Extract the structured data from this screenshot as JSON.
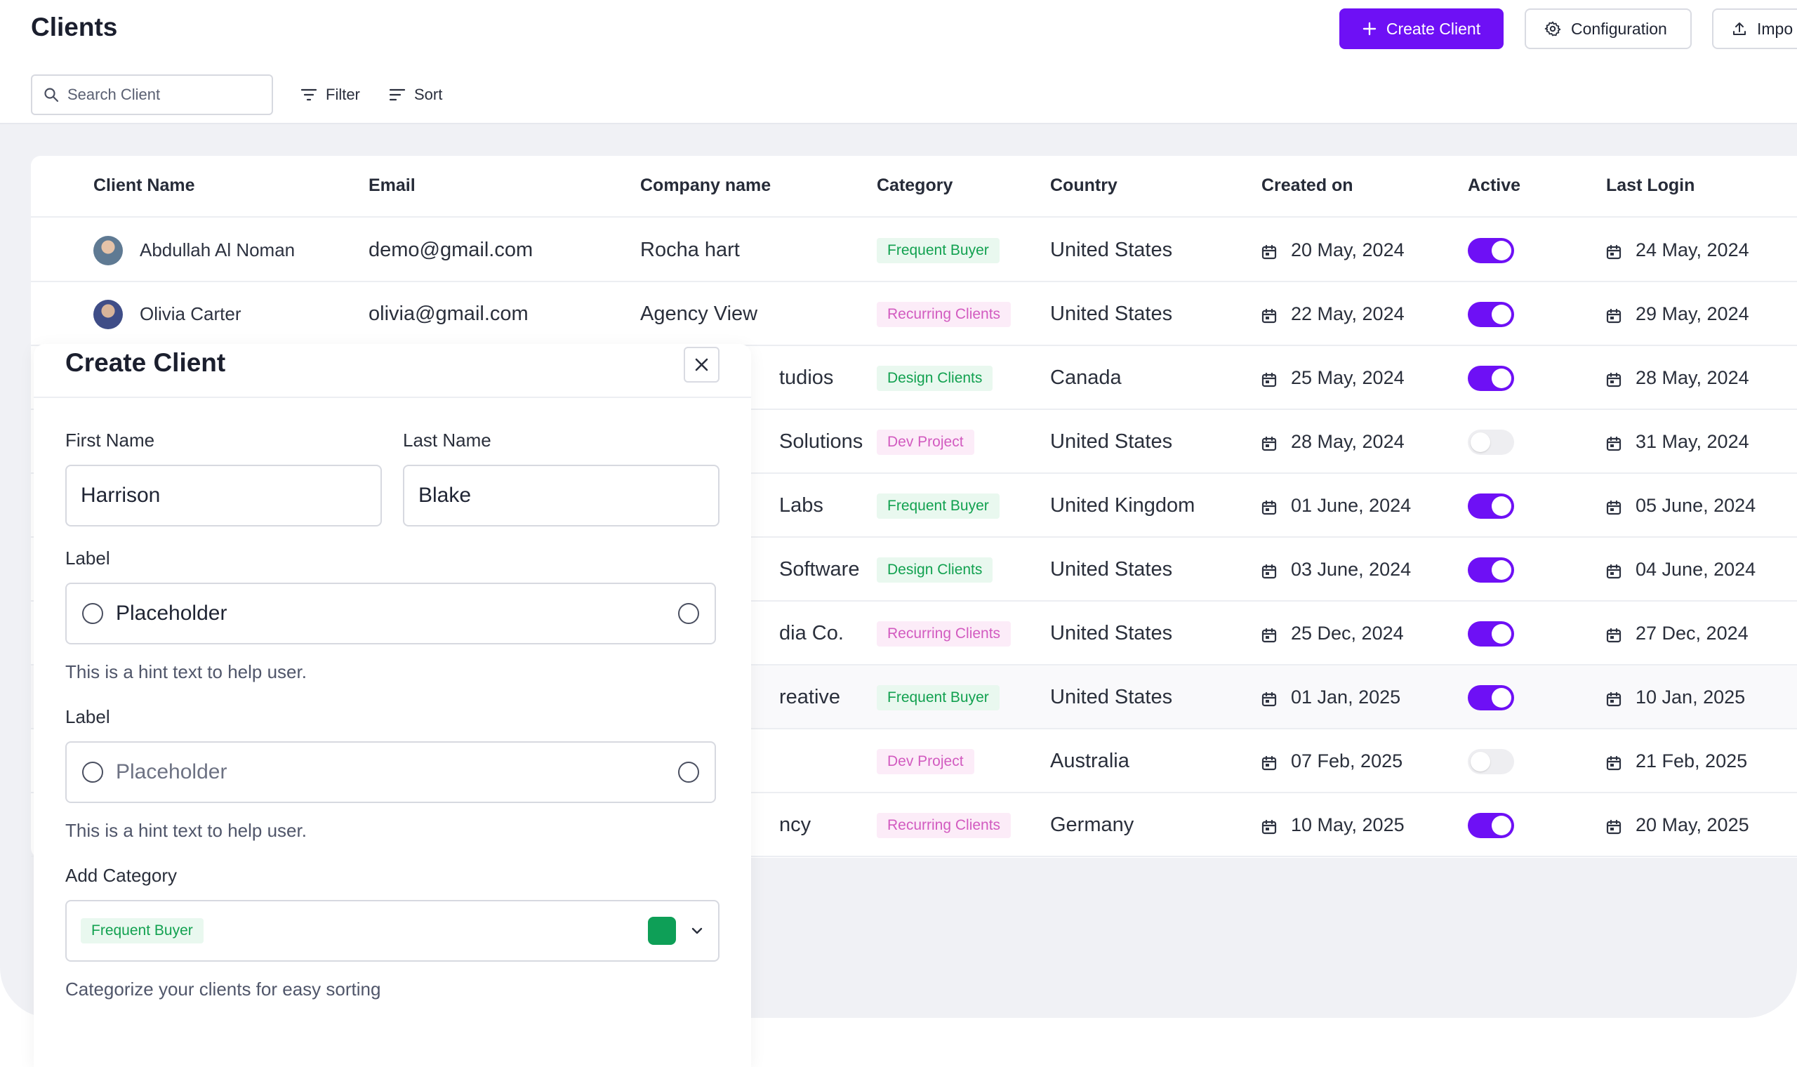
{
  "header": {
    "title": "Clients",
    "create_label": "Create Client",
    "config_label": "Configuration",
    "import_label": "Impo"
  },
  "toolbar": {
    "search_placeholder": "Search Client",
    "filter_label": "Filter",
    "sort_label": "Sort"
  },
  "table": {
    "columns": [
      "Client Name",
      "Email",
      "Company name",
      "Category",
      "Country",
      "Created on",
      "Active",
      "Last Login"
    ],
    "rows": [
      {
        "name": "Abdullah Al Noman",
        "email": "demo@gmail.com",
        "company": "Rocha hart",
        "category": "Frequent Buyer",
        "country": "United States",
        "created": "20 May, 2024",
        "active": true,
        "last_login": "24 May, 2024"
      },
      {
        "name": "Olivia Carter",
        "email": "olivia@gmail.com",
        "company": "Agency View",
        "category": "Recurring Clients",
        "country": "United States",
        "created": "22 May, 2024",
        "active": true,
        "last_login": "29 May, 2024"
      },
      {
        "name": "",
        "email": "",
        "company": "tudios",
        "category": "Design Clients",
        "country": "Canada",
        "created": "25 May, 2024",
        "active": true,
        "last_login": "28 May, 2024"
      },
      {
        "name": "",
        "email": "",
        "company": "Solutions",
        "category": "Dev  Project",
        "country": "United States",
        "created": "28 May, 2024",
        "active": false,
        "last_login": "31 May, 2024"
      },
      {
        "name": "",
        "email": "",
        "company": "Labs",
        "category": "Frequent Buyer",
        "country": "United Kingdom",
        "created": "01 June, 2024",
        "active": true,
        "last_login": "05 June, 2024"
      },
      {
        "name": "",
        "email": "",
        "company": "Software",
        "category": "Design Clients",
        "country": "United States",
        "created": "03 June, 2024",
        "active": true,
        "last_login": "04 June, 2024"
      },
      {
        "name": "",
        "email": "",
        "company": "dia Co.",
        "category": "Recurring Clients",
        "country": "United States",
        "created": "25 Dec, 2024",
        "active": true,
        "last_login": "27 Dec, 2024"
      },
      {
        "name": "",
        "email": "",
        "company": "reative",
        "category": "Frequent Buyer",
        "country": "United States",
        "created": "01 Jan, 2025",
        "active": true,
        "last_login": "10 Jan, 2025"
      },
      {
        "name": "",
        "email": "",
        "company": "",
        "category": "Dev  Project",
        "country": "Australia",
        "created": "07 Feb, 2025",
        "active": false,
        "last_login": "21 Feb, 2025"
      },
      {
        "name": "",
        "email": "",
        "company": "ncy",
        "category": "Recurring Clients",
        "country": "Germany",
        "created": "10 May, 2025",
        "active": true,
        "last_login": "20 May, 2025"
      }
    ]
  },
  "category_colors": {
    "Frequent Buyer": {
      "bg": "#e9f8ef",
      "fg": "#12a150"
    },
    "Recurring Clients": {
      "bg": "#fcecf8",
      "fg": "#d25bc0"
    },
    "Design Clients": {
      "bg": "#e9f8ef",
      "fg": "#12a150"
    },
    "Dev  Project": {
      "bg": "#fcecf8",
      "fg": "#d25bc0"
    }
  },
  "dialog": {
    "title": "Create Client",
    "first_name_label": "First Name",
    "first_name_value": "Harrison",
    "last_name_label": "Last Name",
    "last_name_value": "Blake",
    "field1_label": "Label",
    "field1_value": "Placeholder",
    "field1_hint": "This is a hint text to help user.",
    "field2_label": "Label",
    "field2_placeholder": "Placeholder",
    "field2_hint": "This is a hint text to help user.",
    "category_label": "Add Category",
    "category_value": "Frequent Buyer",
    "category_color": "#0e9f57",
    "category_hint": "Categorize your clients for easy sorting"
  },
  "colors": {
    "accent": "#6e10f5"
  }
}
